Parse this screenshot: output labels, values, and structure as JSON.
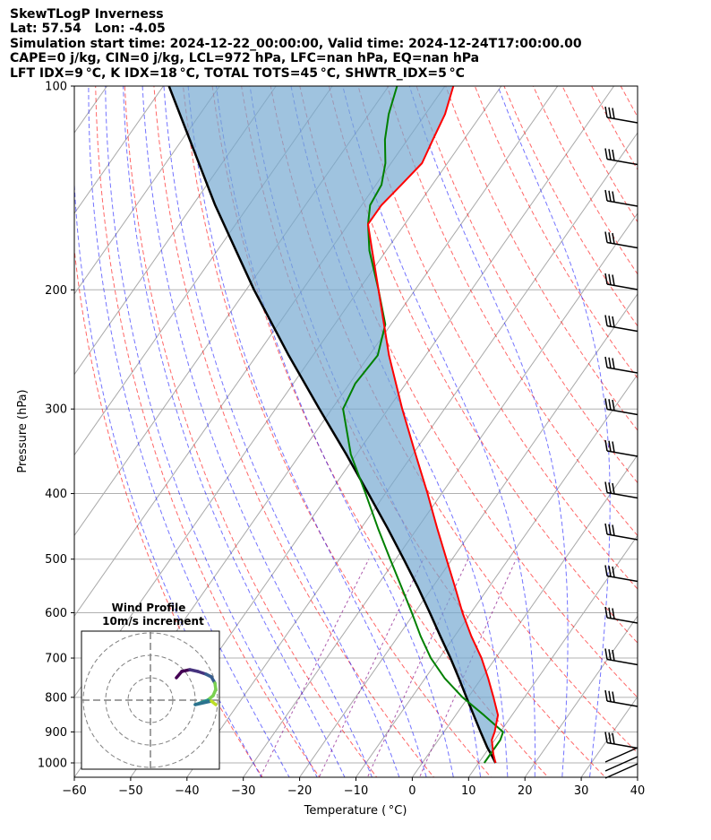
{
  "header": {
    "line1": "SkewTLogP Inverness",
    "line2": "Lat: 57.54   Lon: -4.05",
    "line3": "Simulation start time: 2024-12-22_00:00:00, Valid time: 2024-12-24T17:00:00.00",
    "line4": "CAPE=0 j/kg, CIN=0 j/kg, LCL=972 hPa, LFC=nan hPa, EQ=nan hPa",
    "line5": "LFT IDX=9 °C, K IDX=18 °C, TOTAL TOTS=45 °C, SHWTR_IDX=5 °C"
  },
  "colors": {
    "temperature": "#ff0000",
    "dewpoint": "#008000",
    "parcel": "#000000",
    "cape_fill": "#76a9d2",
    "dry_adiabat": "#ff0000",
    "moist_adiabat": "#0000ff",
    "mixing_ratio": "#800080",
    "isotherm_grid": "#808080"
  },
  "chart_data": [
    {
      "type": "line",
      "subtype": "skew-T log-P diagram",
      "xlabel": "Temperature ( °C)",
      "ylabel": "Pressure (hPa)",
      "xlim": [
        -60,
        40
      ],
      "ylim": [
        1050,
        100
      ],
      "y_scale": "log",
      "x_ticks": [
        -60,
        -50,
        -40,
        -30,
        -20,
        -10,
        0,
        10,
        20,
        30,
        40
      ],
      "x_tick_labels": [
        "−60",
        "−50",
        "−40",
        "−30",
        "−20",
        "−10",
        "0",
        "10",
        "20",
        "30",
        "40"
      ],
      "y_ticks": [
        1000,
        900,
        800,
        700,
        600,
        500,
        400,
        300,
        200,
        100
      ],
      "y_tick_labels": [
        "1000",
        "900",
        "800",
        "700",
        "600",
        "500",
        "400",
        "300",
        "200",
        "100"
      ],
      "grid": true,
      "series": [
        {
          "key": "temperature",
          "pressure": [
            1000,
            970,
            925,
            900,
            850,
            800,
            750,
            700,
            650,
            600,
            550,
            500,
            450,
            400,
            350,
            300,
            250,
            200,
            175,
            160,
            150,
            140,
            130,
            120,
            110,
            100
          ],
          "values": [
            13,
            11.5,
            9.5,
            9.0,
            7.5,
            4.5,
            1.2,
            -2.5,
            -7.0,
            -11.5,
            -16.0,
            -21.0,
            -26.5,
            -32.5,
            -39.5,
            -47.5,
            -56.5,
            -66.5,
            -72.5,
            -76.5,
            -76.5,
            -75.5,
            -74.5,
            -75.5,
            -76.5,
            -78.5
          ]
        },
        {
          "key": "dewpoint",
          "pressure": [
            1000,
            970,
            925,
            900,
            850,
            800,
            750,
            700,
            650,
            600,
            550,
            500,
            450,
            400,
            350,
            300,
            275,
            250,
            225,
            200,
            175,
            160,
            150,
            140,
            130,
            120,
            110,
            100
          ],
          "values": [
            11.0,
            11.0,
            11.0,
            10.5,
            5.0,
            -1.0,
            -6.5,
            -11.5,
            -16.0,
            -20.5,
            -25.5,
            -31.0,
            -37.0,
            -43.5,
            -51.0,
            -58.0,
            -59.0,
            -58.5,
            -61.0,
            -66.5,
            -73.0,
            -76.5,
            -78.5,
            -79.0,
            -81.0,
            -84.0,
            -86.5,
            -88.5
          ]
        },
        {
          "key": "parcel",
          "pressure": [
            1000,
            972,
            950,
            900,
            850,
            800,
            750,
            700,
            650,
            600,
            550,
            500,
            450,
            400,
            350,
            300,
            250,
            200,
            150,
            100
          ],
          "values": [
            13,
            11.2,
            9.7,
            6.5,
            3.2,
            -0.3,
            -4.0,
            -8.0,
            -12.5,
            -17.3,
            -22.6,
            -28.6,
            -35.3,
            -43.0,
            -51.8,
            -62.2,
            -74.3,
            -88.6,
            -106.0,
            -129.0
          ]
        }
      ]
    },
    {
      "type": "line",
      "subtype": "hodograph",
      "title": "Wind Profile",
      "subtitle": "10m/s increment",
      "grid": true
    }
  ]
}
